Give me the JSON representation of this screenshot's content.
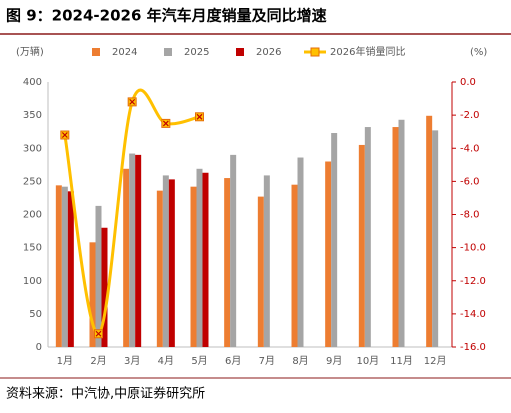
{
  "chart_data": {
    "type": "bar-line",
    "title": "图 9：2024-2026 年汽车月度销量及同比增速",
    "source": "资料来源：中汽协,中原证券研究所",
    "y_label": "(万辆)",
    "y2_label": "(%)",
    "categories": [
      "1月",
      "2月",
      "3月",
      "4月",
      "5月",
      "6月",
      "7月",
      "8月",
      "9月",
      "10月",
      "11月",
      "12月"
    ],
    "series": [
      {
        "name": "2024",
        "color": "#ED7D31",
        "type": "bar",
        "values": [
          244,
          158,
          269,
          236,
          242,
          255,
          227,
          245,
          280,
          305,
          332,
          349
        ]
      },
      {
        "name": "2025",
        "color": "#A5A5A5",
        "type": "bar",
        "values": [
          242,
          213,
          292,
          259,
          269,
          290,
          259,
          286,
          323,
          332,
          343,
          327
        ]
      },
      {
        "name": "2026",
        "color": "#C00000",
        "type": "bar",
        "values": [
          235,
          180,
          290,
          253,
          263,
          null,
          null,
          null,
          null,
          null,
          null,
          null
        ]
      },
      {
        "name": "2026年销量同比",
        "color": "#FFC000",
        "type": "line",
        "axis": "y2",
        "values": [
          -3.2,
          -15.2,
          -1.2,
          -2.5,
          -2.1,
          null,
          null,
          null,
          null,
          null,
          null,
          null
        ]
      }
    ],
    "ylim": [
      0,
      400
    ],
    "yticks": [
      0,
      50,
      100,
      150,
      200,
      250,
      300,
      350,
      400
    ],
    "y2lim": [
      -16,
      0
    ],
    "y2ticks": [
      {
        "value": 0,
        "label": "0.0"
      },
      {
        "value": -2,
        "label": "-2.0"
      },
      {
        "value": -4,
        "label": "-4.0"
      },
      {
        "value": -6,
        "label": "-6.0"
      },
      {
        "value": -8,
        "label": "-8.0"
      },
      {
        "value": -10,
        "label": "-10.0"
      },
      {
        "value": -12,
        "label": "-12.0"
      },
      {
        "value": -14,
        "label": "-14.0"
      },
      {
        "value": -16,
        "label": "-16.0"
      }
    ]
  }
}
